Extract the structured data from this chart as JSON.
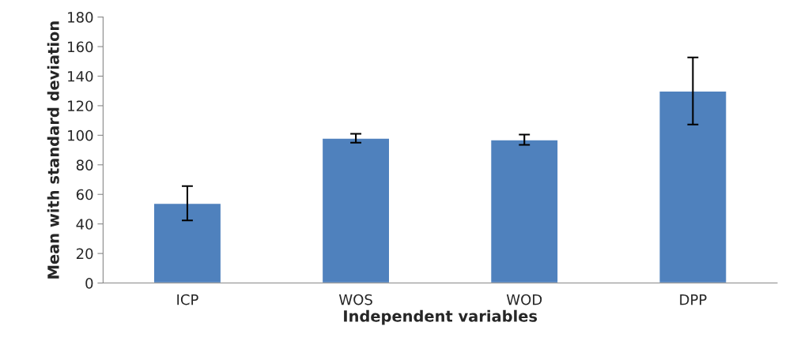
{
  "chart_data": {
    "type": "bar",
    "xlabel": "Independent variables",
    "ylabel": "Mean with standard deviation",
    "categories": [
      "ICP",
      "WOS",
      "WOD",
      "DPP"
    ],
    "values": [
      54,
      98,
      97,
      130
    ],
    "errors": [
      11.6,
      3,
      3.5,
      22.7
    ],
    "color": "#4f81bd",
    "ylim": [
      0,
      180
    ],
    "yticks": [
      0,
      20,
      40,
      60,
      80,
      100,
      120,
      140,
      160,
      180
    ],
    "grid": false,
    "legend": false
  }
}
